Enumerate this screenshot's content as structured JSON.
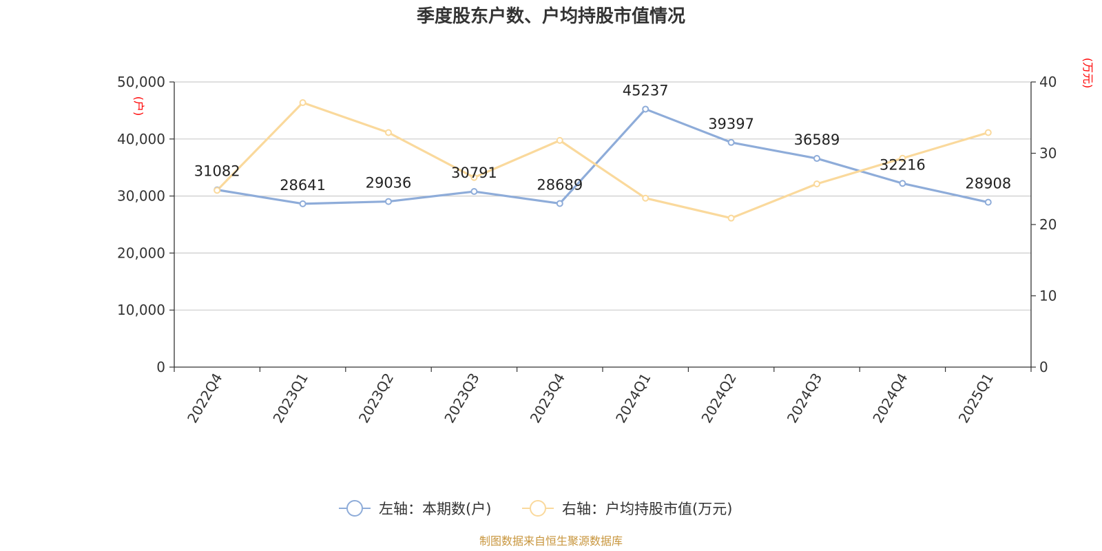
{
  "chart_data": {
    "type": "line",
    "title": "季度股东户数、户均持股市值情况",
    "categories": [
      "2022Q4",
      "2023Q1",
      "2023Q2",
      "2023Q3",
      "2023Q4",
      "2024Q1",
      "2024Q2",
      "2024Q3",
      "2024Q4",
      "2025Q1"
    ],
    "left_axis": {
      "unit": "(户)",
      "ylim": [
        0,
        50000
      ],
      "ticks": [
        0,
        10000,
        20000,
        30000,
        40000,
        50000
      ],
      "tick_labels": [
        "0",
        "10,000",
        "20,000",
        "30,000",
        "40,000",
        "50,000"
      ]
    },
    "right_axis": {
      "unit": "(万元)",
      "ylim": [
        0,
        40
      ],
      "ticks": [
        0,
        10,
        20,
        30,
        40
      ],
      "tick_labels": [
        "0",
        "10",
        "20",
        "30",
        "40"
      ]
    },
    "series": [
      {
        "name": "左轴：本期数(户)",
        "axis": "left",
        "color": "#8eacd9",
        "values": [
          31082,
          28641,
          29036,
          30791,
          28689,
          45237,
          39397,
          36589,
          32216,
          28908
        ],
        "labels": [
          "31082",
          "28641",
          "29036",
          "30791",
          "28689",
          "45237",
          "39397",
          "36589",
          "32216",
          "28908"
        ]
      },
      {
        "name": "右轴：户均持股市值(万元)",
        "axis": "right",
        "color": "#fad99c",
        "values": [
          24.8,
          37.1,
          32.9,
          26.6,
          31.8,
          23.7,
          20.9,
          25.7,
          29.3,
          32.9
        ]
      }
    ],
    "grid": true,
    "legend_position": "bottom",
    "unit_color": "#ff0000"
  },
  "source": {
    "text": "制图数据来自恒生聚源数据库",
    "color": "#c8963e"
  }
}
